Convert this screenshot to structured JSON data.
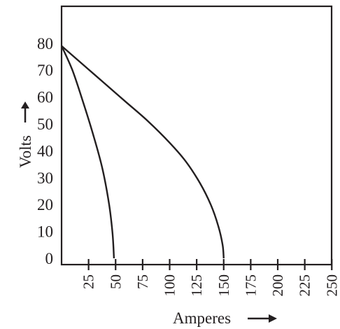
{
  "chart_data": {
    "type": "line",
    "title": "",
    "xlabel": "Amperes",
    "ylabel": "Volts",
    "xlim": [
      0,
      250
    ],
    "ylim": [
      0,
      90
    ],
    "xticks": [
      "25",
      "50",
      "75",
      "100",
      "125",
      "150",
      "175",
      "200",
      "225",
      "250"
    ],
    "yticks": [
      "0",
      "10",
      "20",
      "30",
      "40",
      "50",
      "60",
      "70",
      "80"
    ],
    "grid": false,
    "series": [
      {
        "x": [
          0,
          10,
          20,
          30,
          38,
          44,
          47,
          48,
          48.5
        ],
        "y": [
          79,
          70,
          58,
          45,
          33,
          20,
          10,
          4,
          0
        ]
      },
      {
        "x": [
          0,
          20,
          40,
          60,
          80,
          100,
          115,
          128,
          138,
          145,
          149,
          150
        ],
        "y": [
          79,
          72,
          65,
          58,
          51,
          43,
          36,
          28,
          20,
          12,
          5,
          0
        ]
      }
    ]
  },
  "icons": {
    "ylabel_arrow": "arrow-up-icon",
    "xlabel_arrow": "arrow-right-icon",
    "color": "#231f20"
  }
}
